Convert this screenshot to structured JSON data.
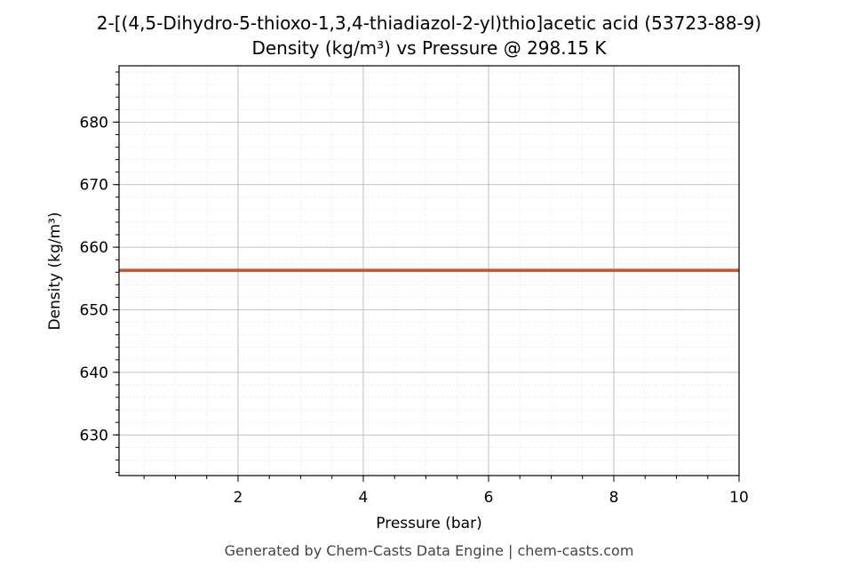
{
  "chart_data": {
    "type": "line",
    "title": "2-[(4,5-Dihydro-5-thioxo-1,3,4-thiadiazol-2-yl)thio]acetic acid (53723-88-9)",
    "subtitle": "Density (kg/m³) vs Pressure @ 298.15 K",
    "x_label": "Pressure (bar)",
    "y_label": "Density (kg/m³)",
    "footer": "Generated by Chem-Casts Data Engine | chem-casts.com",
    "x": [
      0.1,
      10
    ],
    "series": [
      {
        "color": "#c8532b",
        "values": [
          656.3,
          656.3
        ]
      }
    ],
    "xlim": [
      0.1,
      10
    ],
    "xticks": [
      2,
      4,
      6,
      8,
      10
    ],
    "ylim": [
      623.5,
      689
    ],
    "yticks": [
      630,
      640,
      650,
      660,
      670,
      680
    ],
    "grid": true,
    "minor_grid": true
  }
}
